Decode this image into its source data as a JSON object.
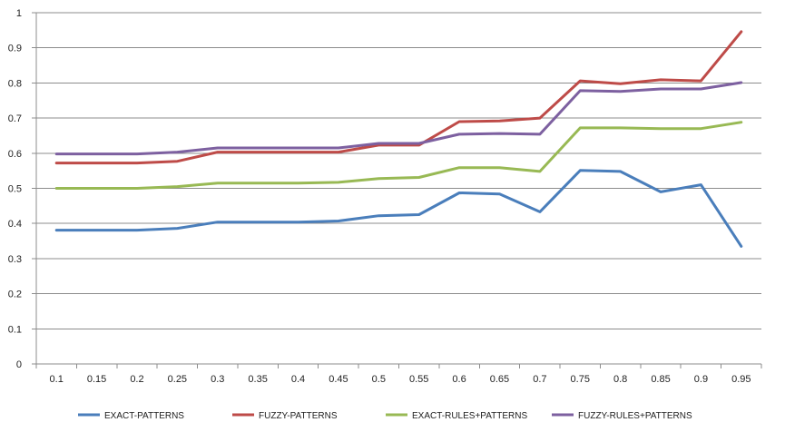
{
  "chart_data": {
    "type": "line",
    "title": "",
    "xlabel": "",
    "ylabel": "",
    "x": [
      "0.1",
      "0.15",
      "0.2",
      "0.25",
      "0.3",
      "0.35",
      "0.4",
      "0.45",
      "0.5",
      "0.55",
      "0.6",
      "0.65",
      "0.7",
      "0.75",
      "0.8",
      "0.85",
      "0.9",
      "0.95"
    ],
    "ylim": [
      0,
      1
    ],
    "yticks": [
      "0",
      "0.1",
      "0.2",
      "0.3",
      "0.4",
      "0.5",
      "0.6",
      "0.7",
      "0.8",
      "0.9",
      "1"
    ],
    "grid": true,
    "legend": "bottom",
    "series": [
      {
        "name": "EXACT-PATTERNS",
        "color": "#4a7ebb",
        "values": [
          0.381,
          0.381,
          0.381,
          0.386,
          0.404,
          0.404,
          0.404,
          0.407,
          0.422,
          0.425,
          0.487,
          0.484,
          0.433,
          0.551,
          0.548,
          0.49,
          0.51,
          0.335
        ]
      },
      {
        "name": "FUZZY-PATTERNS",
        "color": "#be4b48",
        "values": [
          0.572,
          0.572,
          0.572,
          0.577,
          0.603,
          0.603,
          0.603,
          0.603,
          0.623,
          0.623,
          0.69,
          0.692,
          0.7,
          0.806,
          0.798,
          0.809,
          0.806,
          0.946
        ]
      },
      {
        "name": "EXACT-RULES+PATTERNS",
        "color": "#98b954",
        "values": [
          0.5,
          0.5,
          0.5,
          0.505,
          0.515,
          0.515,
          0.515,
          0.517,
          0.528,
          0.531,
          0.559,
          0.559,
          0.548,
          0.672,
          0.672,
          0.67,
          0.67,
          0.688
        ]
      },
      {
        "name": "FUZZY-RULES+PATTERNS",
        "color": "#7d60a0",
        "values": [
          0.598,
          0.598,
          0.598,
          0.603,
          0.615,
          0.615,
          0.615,
          0.615,
          0.628,
          0.628,
          0.654,
          0.656,
          0.654,
          0.778,
          0.776,
          0.783,
          0.783,
          0.801
        ]
      }
    ]
  }
}
